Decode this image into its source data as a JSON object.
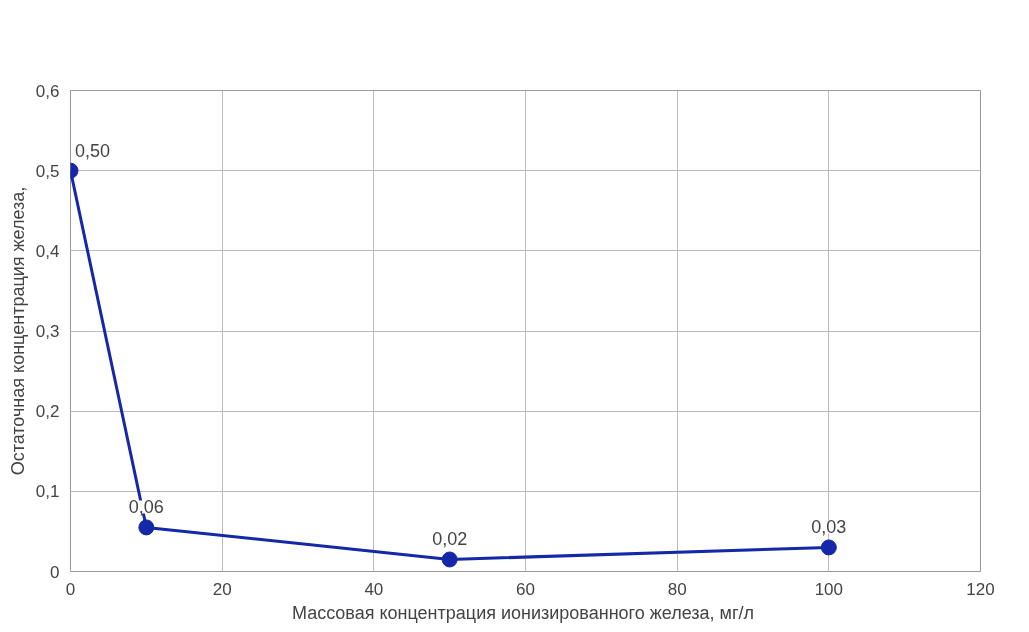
{
  "chart_data": {
    "type": "line",
    "xlabel": "Массовая концентрация  ионизированного железа, мг/л",
    "ylabel": "Остаточная концентрация железа,",
    "x": [
      0,
      10,
      50,
      100
    ],
    "series": [
      {
        "color": "#1428a8",
        "values": [
          0.5,
          0.055,
          0.015,
          0.03
        ],
        "value_labels": [
          "0,50",
          "0,06",
          "0,02",
          "0,03"
        ]
      }
    ],
    "xlim": [
      0,
      120
    ],
    "xticks": [
      0,
      20,
      40,
      60,
      80,
      100,
      120
    ],
    "ylim": [
      0,
      0.6
    ],
    "yticks": [
      0,
      {
        "value": 0.1,
        "label": "0,1"
      },
      {
        "value": 0.2,
        "label": "0,2"
      },
      {
        "value": 0.3,
        "label": "0,3"
      },
      {
        "value": 0.4,
        "label": "0,4"
      },
      {
        "value": 0.5,
        "label": "0,5"
      },
      {
        "value": 0.6,
        "label": "0,6"
      }
    ],
    "grid": true,
    "marker": "circle",
    "line_style": "solid"
  }
}
